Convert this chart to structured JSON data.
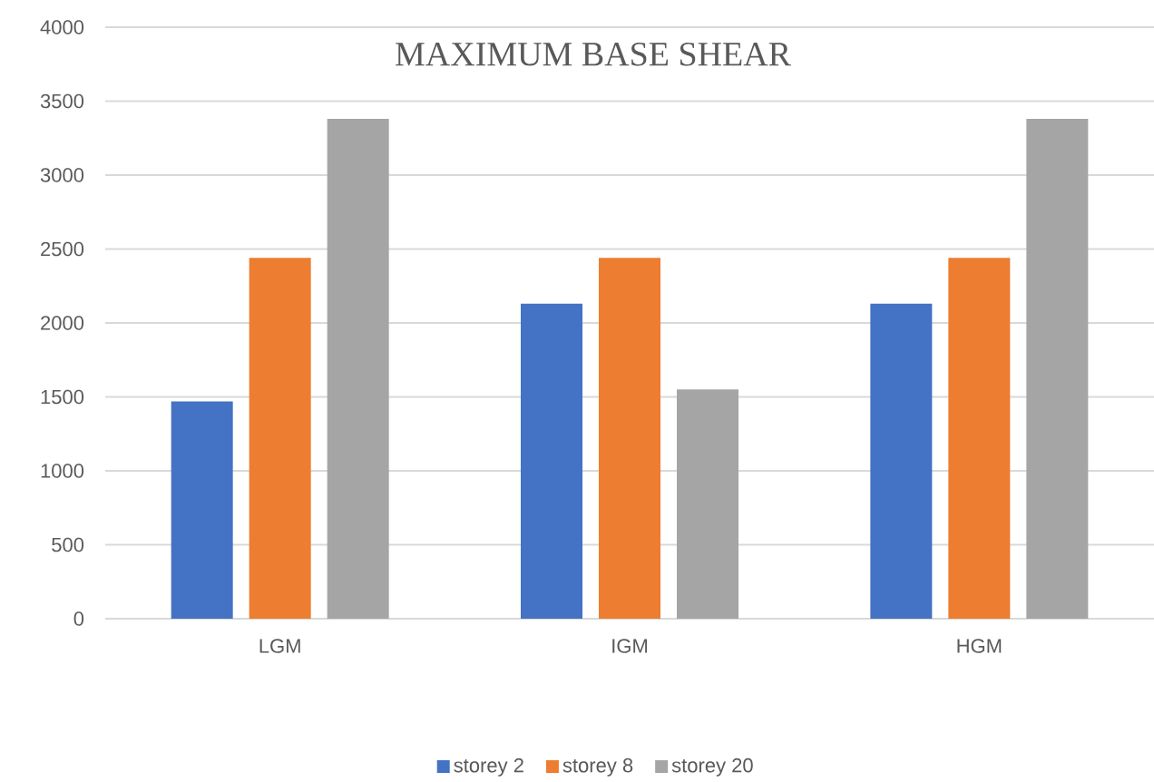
{
  "chart_data": {
    "type": "bar",
    "title": "MAXIMUM BASE SHEAR",
    "categories": [
      "LGM",
      "IGM",
      "HGM"
    ],
    "series": [
      {
        "name": "storey 2",
        "color": "#4472c4",
        "values": [
          1470,
          2130,
          2130
        ]
      },
      {
        "name": "storey 8",
        "color": "#ed7d31",
        "values": [
          2440,
          2440,
          2440
        ]
      },
      {
        "name": "storey 20",
        "color": "#a5a5a5",
        "values": [
          3380,
          1550,
          3380
        ]
      }
    ],
    "ylim": [
      0,
      4000
    ],
    "yticks": [
      0,
      500,
      1000,
      1500,
      2000,
      2500,
      3000,
      3500,
      4000
    ],
    "grid": "y",
    "legend": "bottom"
  }
}
